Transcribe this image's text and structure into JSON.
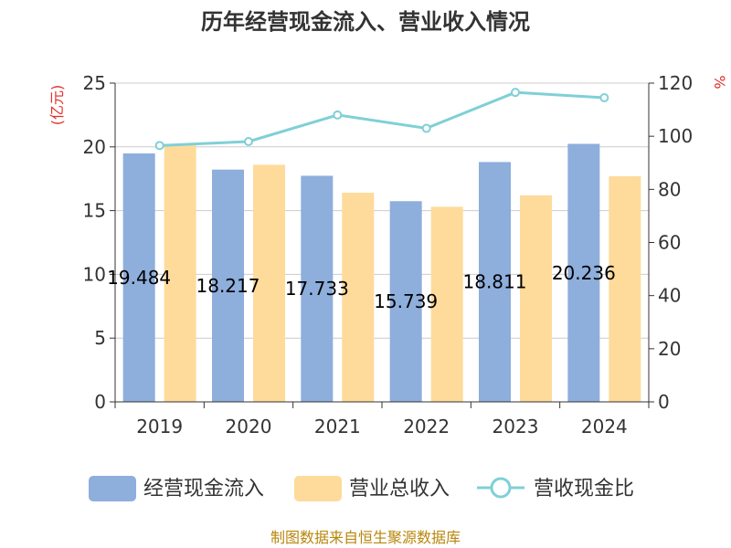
{
  "chart_data": {
    "type": "bar",
    "title": "历年经营现金流入、营业收入情况",
    "categories": [
      "2019",
      "2020",
      "2021",
      "2022",
      "2023",
      "2024"
    ],
    "series": [
      {
        "name": "经营现金流入",
        "kind": "bar",
        "axis": "left",
        "color": "#8eaedc",
        "values": [
          19.484,
          18.217,
          17.733,
          15.739,
          18.811,
          20.236
        ],
        "labels": [
          "19.484",
          "18.217",
          "17.733",
          "15.739",
          "18.811",
          "20.236"
        ]
      },
      {
        "name": "营业总收入",
        "kind": "bar",
        "axis": "left",
        "color": "#fedb9b",
        "values": [
          20.2,
          18.6,
          16.4,
          15.3,
          16.2,
          17.7
        ]
      },
      {
        "name": "营收现金比",
        "kind": "line",
        "axis": "right",
        "color": "#7fd0d6",
        "values": [
          96.5,
          98.0,
          108.0,
          103.0,
          116.5,
          114.5
        ]
      }
    ],
    "y_left": {
      "unit": "(亿元)",
      "ylim": [
        0,
        25
      ],
      "ticks": [
        "0",
        "5",
        "10",
        "15",
        "20",
        "25"
      ]
    },
    "y_right": {
      "unit": "%",
      "ylim": [
        0,
        120
      ],
      "ticks": [
        "0",
        "20",
        "40",
        "60",
        "80",
        "100",
        "120"
      ]
    },
    "grid": true,
    "legend": "bottom"
  },
  "source_text": "制图数据来自恒生聚源数据库"
}
